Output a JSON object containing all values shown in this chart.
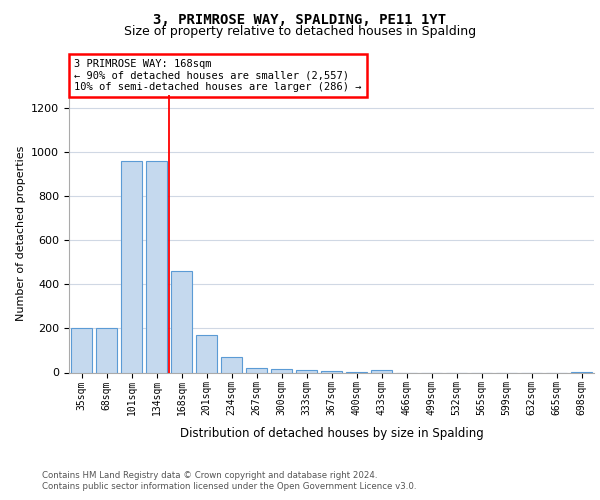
{
  "title": "3, PRIMROSE WAY, SPALDING, PE11 1YT",
  "subtitle": "Size of property relative to detached houses in Spalding",
  "xlabel": "Distribution of detached houses by size in Spalding",
  "ylabel": "Number of detached properties",
  "footer_line1": "Contains HM Land Registry data © Crown copyright and database right 2024.",
  "footer_line2": "Contains public sector information licensed under the Open Government Licence v3.0.",
  "categories": [
    "35sqm",
    "68sqm",
    "101sqm",
    "134sqm",
    "168sqm",
    "201sqm",
    "234sqm",
    "267sqm",
    "300sqm",
    "333sqm",
    "367sqm",
    "400sqm",
    "433sqm",
    "466sqm",
    "499sqm",
    "532sqm",
    "565sqm",
    "599sqm",
    "632sqm",
    "665sqm",
    "698sqm"
  ],
  "values": [
    200,
    200,
    960,
    960,
    460,
    170,
    70,
    20,
    15,
    10,
    5,
    3,
    10,
    0,
    0,
    0,
    0,
    0,
    0,
    0,
    3
  ],
  "bar_color": "#c5d9ee",
  "bar_edge_color": "#5b9bd5",
  "red_line_index": 3.5,
  "annotation_text_line1": "3 PRIMROSE WAY: 168sqm",
  "annotation_text_line2": "← 90% of detached houses are smaller (2,557)",
  "annotation_text_line3": "10% of semi-detached houses are larger (286) →",
  "ylim": [
    0,
    1260
  ],
  "yticks": [
    0,
    200,
    400,
    600,
    800,
    1000,
    1200
  ],
  "grid_color": "#d0d8e4",
  "title_fontsize": 10,
  "subtitle_fontsize": 9
}
